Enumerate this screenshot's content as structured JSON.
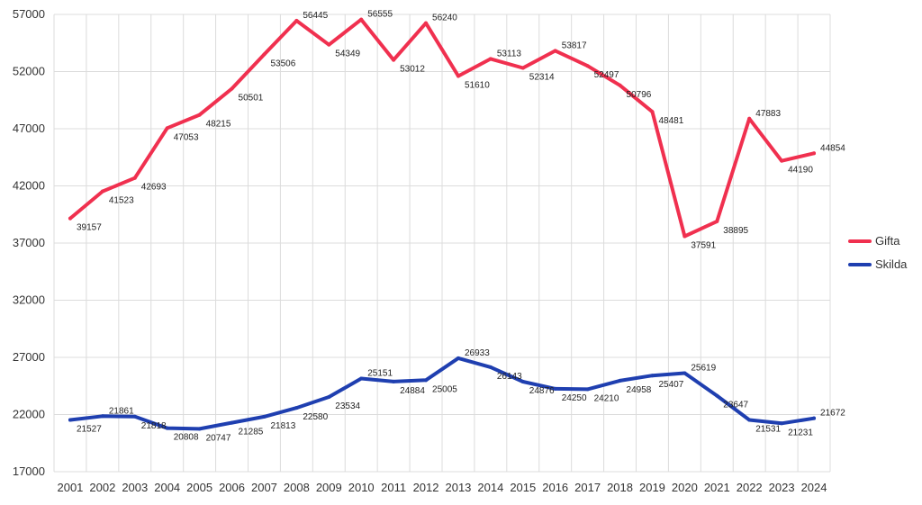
{
  "chart_data": {
    "type": "line",
    "title": "",
    "xlabel": "",
    "ylabel": "",
    "categories": [
      "2001",
      "2002",
      "2003",
      "2004",
      "2005",
      "2006",
      "2007",
      "2008",
      "2009",
      "2010",
      "2011",
      "2012",
      "2013",
      "2014",
      "2015",
      "2016",
      "2017",
      "2018",
      "2019",
      "2020",
      "2021",
      "2022",
      "2023",
      "2024"
    ],
    "ylim": [
      17000,
      57000
    ],
    "yticks": [
      "17000",
      "22000",
      "27000",
      "32000",
      "37000",
      "42000",
      "47000",
      "52000",
      "57000"
    ],
    "grid": true,
    "legend_position": "right",
    "series": [
      {
        "name": "Gifta",
        "color": "#f0304f",
        "values": [
          39157,
          41523,
          42693,
          47053,
          48215,
          50501,
          53506,
          56445,
          54349,
          56555,
          53012,
          56240,
          51610,
          53113,
          52314,
          53817,
          52497,
          50796,
          48481,
          37591,
          38895,
          47883,
          44190,
          44854
        ]
      },
      {
        "name": "Skilda",
        "color": "#1f3fb0",
        "values": [
          21527,
          21861,
          21818,
          20808,
          20747,
          21285,
          21813,
          22580,
          23534,
          25151,
          24884,
          25005,
          26933,
          26143,
          24876,
          24250,
          24210,
          24958,
          25407,
          25619,
          23647,
          21531,
          21231,
          21672
        ]
      }
    ]
  }
}
